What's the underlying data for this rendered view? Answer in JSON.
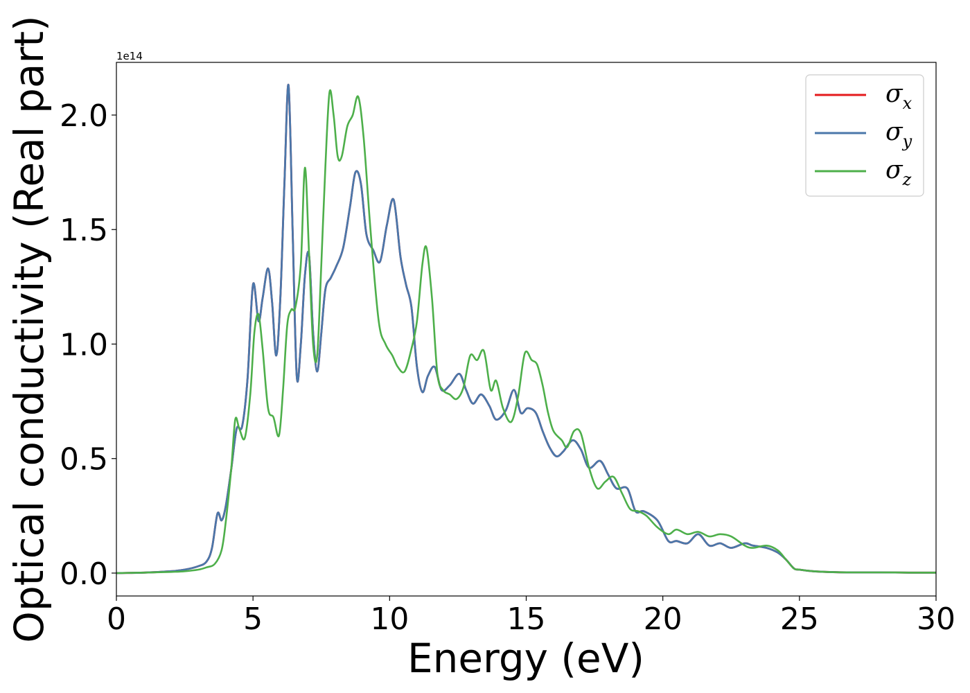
{
  "chart_data": {
    "type": "line",
    "xlabel": "Energy (eV)",
    "ylabel": "Optical conductivity (Real part)",
    "y_offset_label": "1e14",
    "xlim": [
      0,
      30
    ],
    "ylim": [
      -0.1,
      2.23
    ],
    "x_ticks": [
      0,
      5,
      10,
      15,
      20,
      25,
      30
    ],
    "x_tick_labels": [
      "0",
      "5",
      "10",
      "15",
      "20",
      "25",
      "30"
    ],
    "y_ticks": [
      0.0,
      0.5,
      1.0,
      1.5,
      2.0
    ],
    "y_tick_labels": [
      "0.0",
      "0.5",
      "1.0",
      "1.5",
      "2.0"
    ],
    "grid": false,
    "legend_position": "top-right",
    "series": [
      {
        "name": "σx",
        "symbol": "σ",
        "subscript": "x",
        "color": "#e41a1c",
        "x": [
          0,
          1,
          2,
          2.5,
          3,
          3.3,
          3.5,
          3.7,
          3.85,
          4.0,
          4.2,
          4.4,
          4.6,
          4.8,
          5.0,
          5.2,
          5.35,
          5.55,
          5.7,
          5.85,
          6.0,
          6.15,
          6.3,
          6.45,
          6.6,
          6.75,
          6.9,
          7.05,
          7.2,
          7.35,
          7.5,
          7.65,
          7.85,
          8.05,
          8.3,
          8.55,
          8.75,
          8.95,
          9.15,
          9.4,
          9.65,
          9.9,
          10.15,
          10.4,
          10.6,
          10.8,
          11.0,
          11.2,
          11.4,
          11.65,
          11.9,
          12.2,
          12.55,
          12.8,
          13.05,
          13.35,
          13.65,
          13.9,
          14.25,
          14.55,
          14.8,
          15.05,
          15.35,
          15.6,
          15.85,
          16.1,
          16.35,
          16.7,
          17.0,
          17.3,
          17.7,
          18.0,
          18.3,
          18.7,
          19.0,
          19.3,
          19.8,
          20.2,
          20.5,
          20.9,
          21.3,
          21.7,
          22.1,
          22.5,
          23.0,
          23.3,
          23.8,
          24.2,
          24.5,
          24.8,
          25.0,
          25.5,
          26,
          27,
          28,
          29,
          30
        ],
        "y": [
          0.0,
          0.002,
          0.008,
          0.015,
          0.03,
          0.05,
          0.11,
          0.26,
          0.23,
          0.29,
          0.45,
          0.63,
          0.64,
          0.85,
          1.26,
          1.1,
          1.2,
          1.33,
          1.18,
          0.95,
          1.2,
          1.7,
          2.13,
          1.5,
          0.86,
          1.0,
          1.3,
          1.39,
          1.05,
          0.88,
          1.05,
          1.24,
          1.29,
          1.34,
          1.42,
          1.6,
          1.75,
          1.7,
          1.48,
          1.41,
          1.36,
          1.52,
          1.63,
          1.38,
          1.26,
          1.16,
          0.9,
          0.79,
          0.86,
          0.9,
          0.8,
          0.82,
          0.87,
          0.8,
          0.74,
          0.78,
          0.73,
          0.67,
          0.71,
          0.8,
          0.7,
          0.72,
          0.7,
          0.62,
          0.55,
          0.51,
          0.53,
          0.58,
          0.54,
          0.46,
          0.49,
          0.43,
          0.37,
          0.37,
          0.27,
          0.27,
          0.23,
          0.14,
          0.14,
          0.13,
          0.17,
          0.12,
          0.13,
          0.11,
          0.13,
          0.12,
          0.11,
          0.09,
          0.06,
          0.02,
          0.015,
          0.008,
          0.005,
          0.003,
          0.003,
          0.002,
          0.002
        ]
      },
      {
        "name": "σy",
        "symbol": "σ",
        "subscript": "y",
        "color": "#4a77aa",
        "x": [
          0,
          1,
          2,
          2.5,
          3,
          3.3,
          3.5,
          3.7,
          3.85,
          4.0,
          4.2,
          4.4,
          4.6,
          4.8,
          5.0,
          5.2,
          5.35,
          5.55,
          5.7,
          5.85,
          6.0,
          6.15,
          6.3,
          6.45,
          6.6,
          6.75,
          6.9,
          7.05,
          7.2,
          7.35,
          7.5,
          7.65,
          7.85,
          8.05,
          8.3,
          8.55,
          8.75,
          8.95,
          9.15,
          9.4,
          9.65,
          9.9,
          10.15,
          10.4,
          10.6,
          10.8,
          11.0,
          11.2,
          11.4,
          11.65,
          11.9,
          12.2,
          12.55,
          12.8,
          13.05,
          13.35,
          13.65,
          13.9,
          14.25,
          14.55,
          14.8,
          15.05,
          15.35,
          15.6,
          15.85,
          16.1,
          16.35,
          16.7,
          17.0,
          17.3,
          17.7,
          18.0,
          18.3,
          18.7,
          19.0,
          19.3,
          19.8,
          20.2,
          20.5,
          20.9,
          21.3,
          21.7,
          22.1,
          22.5,
          23.0,
          23.3,
          23.8,
          24.2,
          24.5,
          24.8,
          25.0,
          25.5,
          26,
          27,
          28,
          29,
          30
        ],
        "y": [
          0.0,
          0.002,
          0.008,
          0.015,
          0.03,
          0.05,
          0.11,
          0.26,
          0.23,
          0.29,
          0.45,
          0.63,
          0.64,
          0.85,
          1.26,
          1.1,
          1.2,
          1.33,
          1.18,
          0.95,
          1.2,
          1.7,
          2.13,
          1.5,
          0.86,
          1.0,
          1.3,
          1.39,
          1.05,
          0.88,
          1.05,
          1.24,
          1.29,
          1.34,
          1.42,
          1.6,
          1.75,
          1.7,
          1.48,
          1.41,
          1.36,
          1.52,
          1.63,
          1.38,
          1.26,
          1.16,
          0.9,
          0.79,
          0.86,
          0.9,
          0.8,
          0.82,
          0.87,
          0.8,
          0.74,
          0.78,
          0.73,
          0.67,
          0.71,
          0.8,
          0.7,
          0.72,
          0.7,
          0.62,
          0.55,
          0.51,
          0.53,
          0.58,
          0.54,
          0.46,
          0.49,
          0.43,
          0.37,
          0.37,
          0.27,
          0.27,
          0.23,
          0.14,
          0.14,
          0.13,
          0.17,
          0.12,
          0.13,
          0.11,
          0.13,
          0.12,
          0.11,
          0.09,
          0.06,
          0.02,
          0.015,
          0.008,
          0.005,
          0.003,
          0.003,
          0.002,
          0.002
        ]
      },
      {
        "name": "σz",
        "symbol": "σ",
        "subscript": "z",
        "color": "#4daf4a",
        "x": [
          0,
          1,
          2,
          2.5,
          3,
          3.3,
          3.6,
          3.85,
          4.0,
          4.2,
          4.35,
          4.5,
          4.7,
          4.9,
          5.05,
          5.2,
          5.35,
          5.55,
          5.75,
          5.95,
          6.1,
          6.25,
          6.4,
          6.55,
          6.75,
          6.9,
          7.05,
          7.2,
          7.35,
          7.5,
          7.65,
          7.8,
          7.95,
          8.1,
          8.25,
          8.45,
          8.65,
          8.85,
          9.05,
          9.3,
          9.6,
          9.85,
          10.1,
          10.3,
          10.55,
          10.8,
          11.0,
          11.2,
          11.35,
          11.55,
          11.75,
          11.95,
          12.2,
          12.45,
          12.7,
          12.95,
          13.2,
          13.45,
          13.7,
          13.9,
          14.15,
          14.45,
          14.7,
          14.95,
          15.2,
          15.4,
          15.6,
          15.8,
          16.0,
          16.3,
          16.5,
          16.75,
          17.0,
          17.3,
          17.6,
          17.9,
          18.2,
          18.5,
          18.8,
          19.1,
          19.4,
          19.8,
          20.2,
          20.5,
          20.9,
          21.3,
          21.7,
          22.1,
          22.5,
          23.0,
          23.3,
          23.8,
          24.2,
          24.5,
          24.8,
          25.0,
          25.5,
          26,
          27,
          28,
          29,
          30
        ],
        "y": [
          0.0,
          0.002,
          0.005,
          0.008,
          0.015,
          0.025,
          0.04,
          0.1,
          0.22,
          0.45,
          0.67,
          0.63,
          0.59,
          0.78,
          1.05,
          1.13,
          0.98,
          0.72,
          0.68,
          0.6,
          0.8,
          1.08,
          1.15,
          1.16,
          1.35,
          1.77,
          1.4,
          1.0,
          0.95,
          1.35,
          1.78,
          2.1,
          2.0,
          1.82,
          1.82,
          1.95,
          2.0,
          2.08,
          1.9,
          1.5,
          1.1,
          1.0,
          0.95,
          0.9,
          0.88,
          0.98,
          1.1,
          1.35,
          1.42,
          1.2,
          0.87,
          0.8,
          0.78,
          0.76,
          0.81,
          0.95,
          0.93,
          0.97,
          0.8,
          0.84,
          0.72,
          0.66,
          0.77,
          0.96,
          0.93,
          0.91,
          0.82,
          0.7,
          0.62,
          0.58,
          0.55,
          0.62,
          0.61,
          0.46,
          0.37,
          0.4,
          0.42,
          0.35,
          0.28,
          0.27,
          0.25,
          0.2,
          0.17,
          0.19,
          0.17,
          0.18,
          0.16,
          0.17,
          0.16,
          0.12,
          0.11,
          0.12,
          0.1,
          0.06,
          0.02,
          0.015,
          0.008,
          0.005,
          0.003,
          0.003,
          0.002,
          0.002
        ]
      }
    ]
  }
}
